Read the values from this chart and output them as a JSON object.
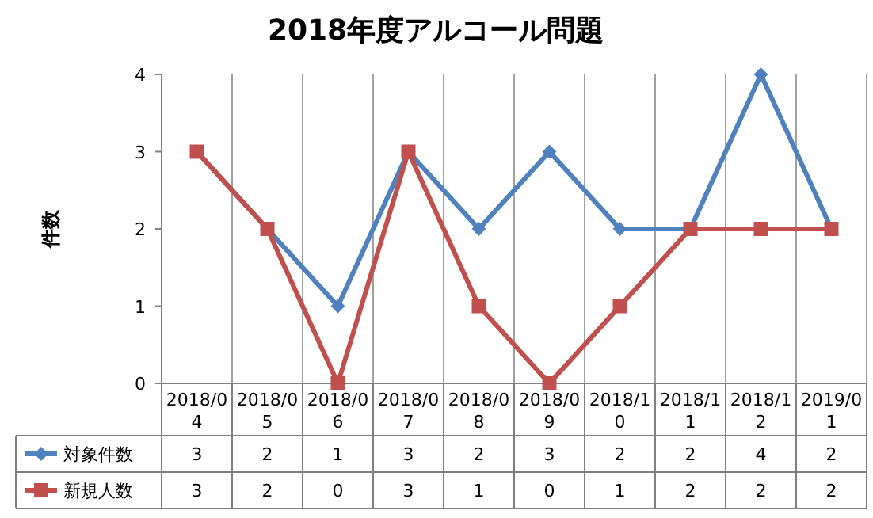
{
  "chart_data": {
    "type": "line",
    "title": "2018年度アルコール問題",
    "ylabel": "件数",
    "categories": [
      "2018/04",
      "2018/05",
      "2018/06",
      "2018/07",
      "2018/08",
      "2018/09",
      "2018/10",
      "2018/11",
      "2018/12",
      "2019/01"
    ],
    "series": [
      {
        "name": "対象件数",
        "color": "#4f81bd",
        "marker": "diamond",
        "values": [
          3,
          2,
          1,
          3,
          2,
          3,
          2,
          2,
          4,
          2
        ]
      },
      {
        "name": "新規人数",
        "color": "#c0504d",
        "marker": "square",
        "values": [
          3,
          2,
          0,
          3,
          1,
          0,
          1,
          2,
          2,
          2
        ]
      }
    ],
    "ylim": [
      0,
      4
    ],
    "yticks": [
      0,
      1,
      2,
      3,
      4
    ],
    "grid": "x",
    "legend": "bottom",
    "data_labels": true
  }
}
